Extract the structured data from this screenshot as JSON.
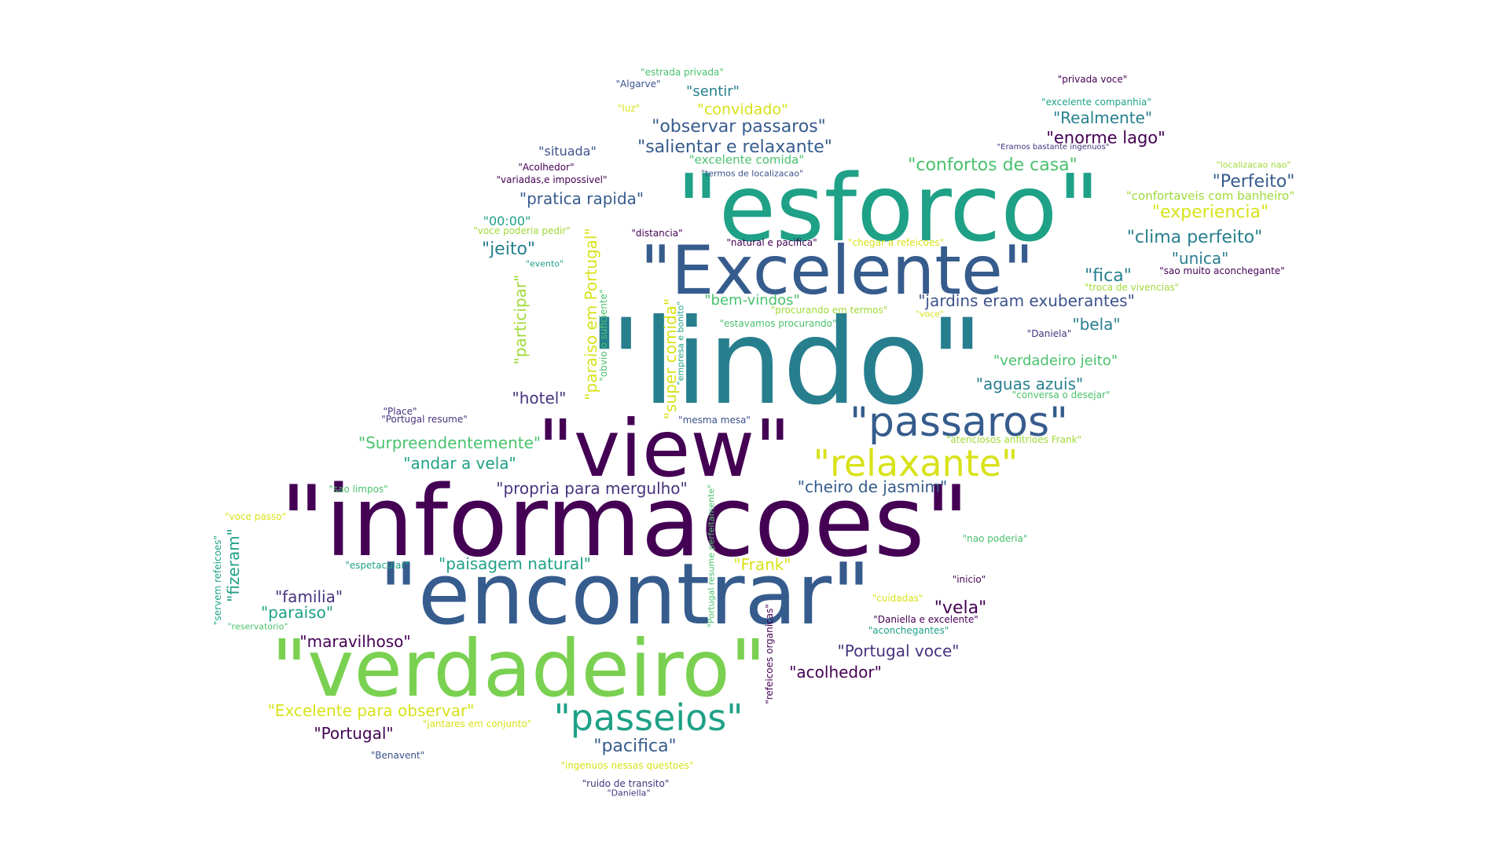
{
  "words": {
    "esforco": "\"esforco\"",
    "excelente": "\"Excelente\"",
    "lindo": "\"lindo\"",
    "view": "\"view\"",
    "informacoes": "\"informacoes\"",
    "encontrar": "\"encontrar\"",
    "verdadeiro": "\"verdadeiro\"",
    "passaros": "\"passaros\"",
    "relaxante": "\"relaxante\"",
    "passeios": "\"passeios\"",
    "estrada_privada": "\"estrada privada\"",
    "algarve": "\"Algarve\"",
    "privada_voce": "\"privada voce\"",
    "sentir": "\"sentir\"",
    "excelente_companhia": "\"excelente companhia\"",
    "luz": "\"luz\"",
    "convidado": "\"convidado\"",
    "realmente": "\"Realmente\"",
    "observar_passaros": "\"observar passaros\"",
    "enorme_lago": "\"enorme lago\"",
    "eramos_bastante_ingenuos": "\"Eramos bastante ingenuos\"",
    "situada": "\"situada\"",
    "salientar_e_relaxante": "\"salientar e relaxante\"",
    "excelente_comida": "\"excelente comida\"",
    "acolhedor_small": "\"Acolhedor\"",
    "confortos_de_casa": "\"confortos de casa\"",
    "localizacao_nao": "\"localizacao nao\"",
    "termos_de_localizacao": "\"termos de localizacao\"",
    "variadas_e_impossivel": "\"variadas,e impossivel\"",
    "perfeito": "\"Perfeito\"",
    "confortaveis_com_banheiro": "\"confortaveis com banheiro\"",
    "pratica_rapida": "\"pratica rapida\"",
    "experiencia": "\"experiencia\"",
    "hora": "\"00:00\"",
    "voce_poderia_pedir": "\"voce poderia pedir\"",
    "distancia": "\"distancia\"",
    "natural_e_pacifica": "\"natural e pacifica\"",
    "chegar_a_refeicoes": "\"chegar a refeicoes\"",
    "clima_perfeito": "\"clima perfeito\"",
    "jeito": "\"jeito\"",
    "unica": "\"unica\"",
    "evento": "\"evento\"",
    "fica": "\"fica\"",
    "sao_muito_aconchegante": "\"sao muito aconchegante\"",
    "troca_de_vivencias": "\"troca de vivencias\"",
    "bem_vindos": "\"bem-vindos\"",
    "jardins_eram_exuberantes": "\"jardins eram exuberantes\"",
    "procurando_em_termos": "\"procurando em termos\"",
    "voce": "\"voce\"",
    "estavamos_procurando": "\"estavamos procurando\"",
    "bela": "\"bela\"",
    "daniela": "\"Daniela\"",
    "verdadeiro_jeito": "\"verdadeiro jeito\"",
    "aguas_azuis": "\"aguas azuis\"",
    "conversa_o_desejar": "\"conversa o desejar\"",
    "hotel": "\"hotel\"",
    "place": "\"Place\"",
    "portugal_resume": "\"Portugal resume\"",
    "mesma_mesa": "\"mesma mesa\"",
    "atenciosos_anfitrioes_frank": "\"atenciosos anfitrioes Frank\"",
    "surpreendentemente": "\"Surpreendentemente\"",
    "andar_a_vela": "\"andar a vela\"",
    "propria_para_mergulho": "\"propria para mergulho\"",
    "cheiro_de_jasmim": "\"cheiro de jasmim\"",
    "sao_limpos": "\"sao limpos\"",
    "voce_passo": "\"voce passo\"",
    "nao_poderia": "\"nao poderia\"",
    "espetacular": "\"espetacular\"",
    "paisagem_natural": "\"paisagem natural\"",
    "frank": "\"Frank\"",
    "inicio": "\"inicio\"",
    "familia": "\"familia\"",
    "paraiso": "\"paraiso\"",
    "cuidadas": "\"cuidadas\"",
    "vela": "\"vela\"",
    "daniella_e_excelente": "\"Daniella e excelente\"",
    "aconchegantes": "\"aconchegantes\"",
    "reservatorio": "\"reservatorio\"",
    "maravilhoso": "\"maravilhoso\"",
    "portugal_voce": "\"Portugal voce\"",
    "acolhedor": "\"acolhedor\"",
    "excelente_para_observar": "\"Excelente para observar\"",
    "jantares_em_conjunto": "\"jantares em conjunto\"",
    "portugal": "\"Portugal\"",
    "pacifica": "\"pacifica\"",
    "benavent": "\"Benavent\"",
    "ingenuos_nessas_questoes": "\"ingenuos nessas questoes\"",
    "ruido_de_transito": "\"ruido de transito\"",
    "daniella": "\"Daniella\"",
    "participar": "\"participar\"",
    "paraiso_em_portugal": "\"paraiso em Portugal\"",
    "obvio_o_suficiente": "\"obvio o suficiente\"",
    "super_comida": "\"super comida\"",
    "empresa_e_bonito": "\"empresa e bonito\"",
    "fizeram": "\"fizeram\"",
    "servem_refeicoes": "\"servem refeicoes\"",
    "portugal_resume_perfeitamente": "\"Portugal resume perfeitamente\"",
    "refeicoes_organicas": "\"refeicoes organicas\""
  },
  "palette": {
    "dark_purple": "#440154",
    "indigo": "#46337e",
    "blue": "#365c8d",
    "teal_blue": "#277f8e",
    "teal": "#1fa187",
    "green": "#4ac16d",
    "light_green": "#a0da39",
    "yellow": "#d8e219"
  }
}
